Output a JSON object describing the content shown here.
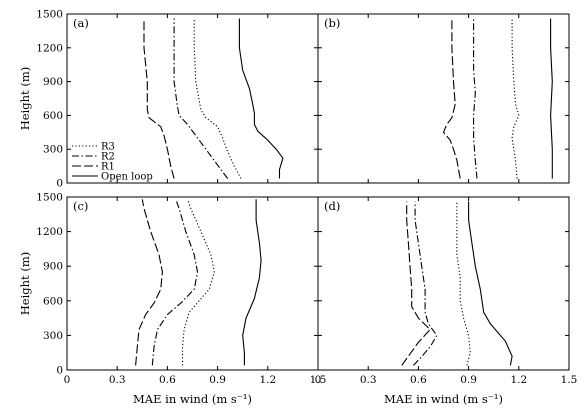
{
  "chart_data": [
    {
      "type": "line",
      "panel_label": "(a)",
      "xlabel": "",
      "ylabel": "Height (m)",
      "xlim": [
        0,
        1.5
      ],
      "ylim": [
        0,
        1500
      ],
      "xticks": [],
      "yticks": [
        "0",
        "300",
        "600",
        "900",
        "1200",
        "1500"
      ],
      "legend": "bottom-left",
      "series": [
        {
          "name": "R3",
          "style": "dotted",
          "points": [
            [
              1.04,
              40
            ],
            [
              1.0,
              150
            ],
            [
              0.96,
              280
            ],
            [
              0.93,
              400
            ],
            [
              0.9,
              500
            ],
            [
              0.83,
              580
            ],
            [
              0.8,
              650
            ],
            [
              0.77,
              900
            ],
            [
              0.76,
              1200
            ],
            [
              0.76,
              1460
            ]
          ]
        },
        {
          "name": "R2",
          "style": "dashdot",
          "points": [
            [
              0.96,
              40
            ],
            [
              0.92,
              120
            ],
            [
              0.85,
              260
            ],
            [
              0.78,
              400
            ],
            [
              0.72,
              520
            ],
            [
              0.67,
              600
            ],
            [
              0.66,
              680
            ],
            [
              0.64,
              900
            ],
            [
              0.64,
              1200
            ],
            [
              0.64,
              1460
            ]
          ]
        },
        {
          "name": "R1",
          "style": "longdash",
          "points": [
            [
              0.64,
              40
            ],
            [
              0.62,
              150
            ],
            [
              0.6,
              300
            ],
            [
              0.58,
              420
            ],
            [
              0.56,
              500
            ],
            [
              0.49,
              580
            ],
            [
              0.48,
              650
            ],
            [
              0.48,
              900
            ],
            [
              0.46,
              1200
            ],
            [
              0.46,
              1460
            ]
          ]
        },
        {
          "name": "Open loop",
          "style": "solid",
          "points": [
            [
              1.27,
              40
            ],
            [
              1.27,
              120
            ],
            [
              1.29,
              220
            ],
            [
              1.25,
              300
            ],
            [
              1.2,
              380
            ],
            [
              1.14,
              460
            ],
            [
              1.12,
              520
            ],
            [
              1.12,
              620
            ],
            [
              1.11,
              700
            ],
            [
              1.09,
              840
            ],
            [
              1.05,
              1000
            ],
            [
              1.03,
              1200
            ],
            [
              1.03,
              1460
            ]
          ]
        }
      ]
    },
    {
      "type": "line",
      "panel_label": "(b)",
      "xlabel": "",
      "ylabel": "",
      "xlim": [
        0,
        1.5
      ],
      "ylim": [
        0,
        1500
      ],
      "xticks": [],
      "yticks": [],
      "series": [
        {
          "name": "R3",
          "style": "dotted",
          "points": [
            [
              1.19,
              40
            ],
            [
              1.18,
              200
            ],
            [
              1.16,
              400
            ],
            [
              1.17,
              500
            ],
            [
              1.2,
              600
            ],
            [
              1.18,
              700
            ],
            [
              1.17,
              900
            ],
            [
              1.16,
              1200
            ],
            [
              1.16,
              1460
            ]
          ]
        },
        {
          "name": "R2",
          "style": "dashdot",
          "points": [
            [
              0.95,
              40
            ],
            [
              0.94,
              200
            ],
            [
              0.93,
              400
            ],
            [
              0.93,
              600
            ],
            [
              0.94,
              800
            ],
            [
              0.93,
              1000
            ],
            [
              0.93,
              1200
            ],
            [
              0.93,
              1460
            ]
          ]
        },
        {
          "name": "R1",
          "style": "longdash",
          "points": [
            [
              0.85,
              40
            ],
            [
              0.83,
              200
            ],
            [
              0.81,
              300
            ],
            [
              0.79,
              380
            ],
            [
              0.75,
              450
            ],
            [
              0.77,
              520
            ],
            [
              0.8,
              580
            ],
            [
              0.82,
              700
            ],
            [
              0.81,
              900
            ],
            [
              0.8,
              1200
            ],
            [
              0.8,
              1460
            ]
          ]
        },
        {
          "name": "Open loop",
          "style": "solid",
          "points": [
            [
              1.4,
              40
            ],
            [
              1.4,
              300
            ],
            [
              1.39,
              600
            ],
            [
              1.4,
              900
            ],
            [
              1.39,
              1200
            ],
            [
              1.39,
              1460
            ]
          ]
        }
      ]
    },
    {
      "type": "line",
      "panel_label": "(c)",
      "xlabel": "MAE  in  wind  (m s⁻¹)",
      "ylabel": "Height (m)",
      "xlim": [
        0,
        1.5
      ],
      "ylim": [
        0,
        1500
      ],
      "xticks": [
        "0",
        "0.3",
        "0.6",
        "0.9",
        "1.2",
        "1.5"
      ],
      "yticks": [
        "0",
        "300",
        "600",
        "900",
        "1200",
        "1500"
      ],
      "series": [
        {
          "name": "R3",
          "style": "dotted",
          "points": [
            [
              0.69,
              40
            ],
            [
              0.69,
              200
            ],
            [
              0.7,
              350
            ],
            [
              0.73,
              500
            ],
            [
              0.79,
              600
            ],
            [
              0.85,
              700
            ],
            [
              0.88,
              850
            ],
            [
              0.86,
              1000
            ],
            [
              0.8,
              1200
            ],
            [
              0.74,
              1400
            ],
            [
              0.72,
              1480
            ]
          ]
        },
        {
          "name": "R2",
          "style": "dashdot",
          "points": [
            [
              0.51,
              40
            ],
            [
              0.52,
              200
            ],
            [
              0.54,
              350
            ],
            [
              0.6,
              480
            ],
            [
              0.68,
              580
            ],
            [
              0.76,
              700
            ],
            [
              0.78,
              850
            ],
            [
              0.76,
              1000
            ],
            [
              0.71,
              1200
            ],
            [
              0.67,
              1400
            ],
            [
              0.65,
              1480
            ]
          ]
        },
        {
          "name": "R1",
          "style": "longdash",
          "points": [
            [
              0.41,
              40
            ],
            [
              0.42,
              200
            ],
            [
              0.43,
              350
            ],
            [
              0.47,
              480
            ],
            [
              0.52,
              580
            ],
            [
              0.56,
              700
            ],
            [
              0.57,
              850
            ],
            [
              0.55,
              1000
            ],
            [
              0.5,
              1200
            ],
            [
              0.46,
              1400
            ],
            [
              0.45,
              1480
            ]
          ]
        },
        {
          "name": "Open loop",
          "style": "solid",
          "points": [
            [
              1.06,
              40
            ],
            [
              1.06,
              150
            ],
            [
              1.05,
              300
            ],
            [
              1.07,
              450
            ],
            [
              1.12,
              620
            ],
            [
              1.15,
              800
            ],
            [
              1.16,
              950
            ],
            [
              1.15,
              1100
            ],
            [
              1.13,
              1300
            ],
            [
              1.13,
              1480
            ]
          ]
        }
      ]
    },
    {
      "type": "line",
      "panel_label": "(d)",
      "xlabel": "MAE  in  wind  (m s⁻¹)",
      "ylabel": "",
      "xlim": [
        0,
        1.5
      ],
      "ylim": [
        0,
        1500
      ],
      "xticks": [
        "0",
        "0.3",
        "0.6",
        "0.9",
        "1.2",
        "1.5"
      ],
      "yticks": [],
      "series": [
        {
          "name": "R3",
          "style": "dotted",
          "points": [
            [
              0.89,
              40
            ],
            [
              0.91,
              150
            ],
            [
              0.9,
              300
            ],
            [
              0.87,
              450
            ],
            [
              0.85,
              600
            ],
            [
              0.85,
              800
            ],
            [
              0.83,
              1000
            ],
            [
              0.83,
              1200
            ],
            [
              0.83,
              1460
            ]
          ]
        },
        {
          "name": "R2",
          "style": "dashdot",
          "points": [
            [
              0.57,
              40
            ],
            [
              0.61,
              100
            ],
            [
              0.67,
              200
            ],
            [
              0.71,
              300
            ],
            [
              0.66,
              400
            ],
            [
              0.64,
              500
            ],
            [
              0.64,
              700
            ],
            [
              0.62,
              900
            ],
            [
              0.6,
              1100
            ],
            [
              0.58,
              1300
            ],
            [
              0.58,
              1460
            ]
          ]
        },
        {
          "name": "R1",
          "style": "longdash",
          "points": [
            [
              0.5,
              40
            ],
            [
              0.54,
              120
            ],
            [
              0.6,
              240
            ],
            [
              0.67,
              350
            ],
            [
              0.6,
              450
            ],
            [
              0.56,
              550
            ],
            [
              0.56,
              700
            ],
            [
              0.55,
              900
            ],
            [
              0.54,
              1100
            ],
            [
              0.53,
              1300
            ],
            [
              0.53,
              1460
            ]
          ]
        },
        {
          "name": "Open loop",
          "style": "solid",
          "points": [
            [
              1.15,
              40
            ],
            [
              1.16,
              120
            ],
            [
              1.12,
              250
            ],
            [
              1.03,
              400
            ],
            [
              0.99,
              500
            ],
            [
              0.97,
              700
            ],
            [
              0.94,
              900
            ],
            [
              0.92,
              1100
            ],
            [
              0.9,
              1300
            ],
            [
              0.9,
              1460
            ]
          ]
        }
      ]
    }
  ]
}
